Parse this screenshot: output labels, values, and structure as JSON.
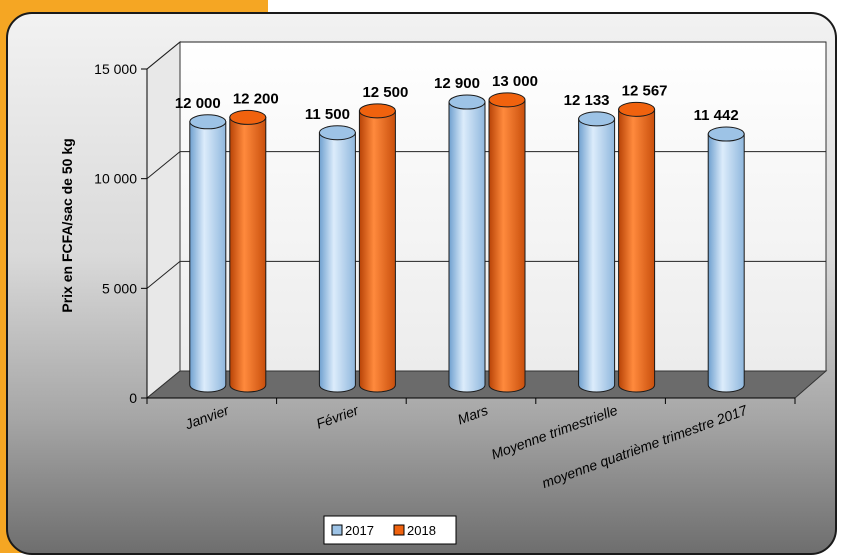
{
  "chart_data": {
    "type": "bar",
    "categories": [
      "Janvier",
      "Février",
      "Mars",
      "Moyenne trimestrielle",
      "moyenne quatrième trimestre 2017"
    ],
    "series": [
      {
        "name": "2017",
        "values": [
          12000,
          11500,
          12900,
          12133,
          11442
        ],
        "labels": [
          "12 000",
          "11 500",
          "12 900",
          "12 133",
          "11 442"
        ],
        "color": "#9dc3e6"
      },
      {
        "name": "2018",
        "values": [
          12200,
          12500,
          13000,
          12567,
          null
        ],
        "labels": [
          "12 200",
          "12 500",
          "13 000",
          "12 567",
          ""
        ],
        "color": "#f0620e"
      }
    ],
    "ylabel": "Prix en FCFA/sac  de 50 kg",
    "ylim": [
      0,
      15000
    ],
    "yticks": [
      0,
      5000,
      10000,
      15000
    ],
    "ytick_labels": [
      "0",
      "5 000",
      "10 000",
      "15 000"
    ],
    "grid": true,
    "legend_position": "bottom-center",
    "style": "3d-cylinder"
  }
}
